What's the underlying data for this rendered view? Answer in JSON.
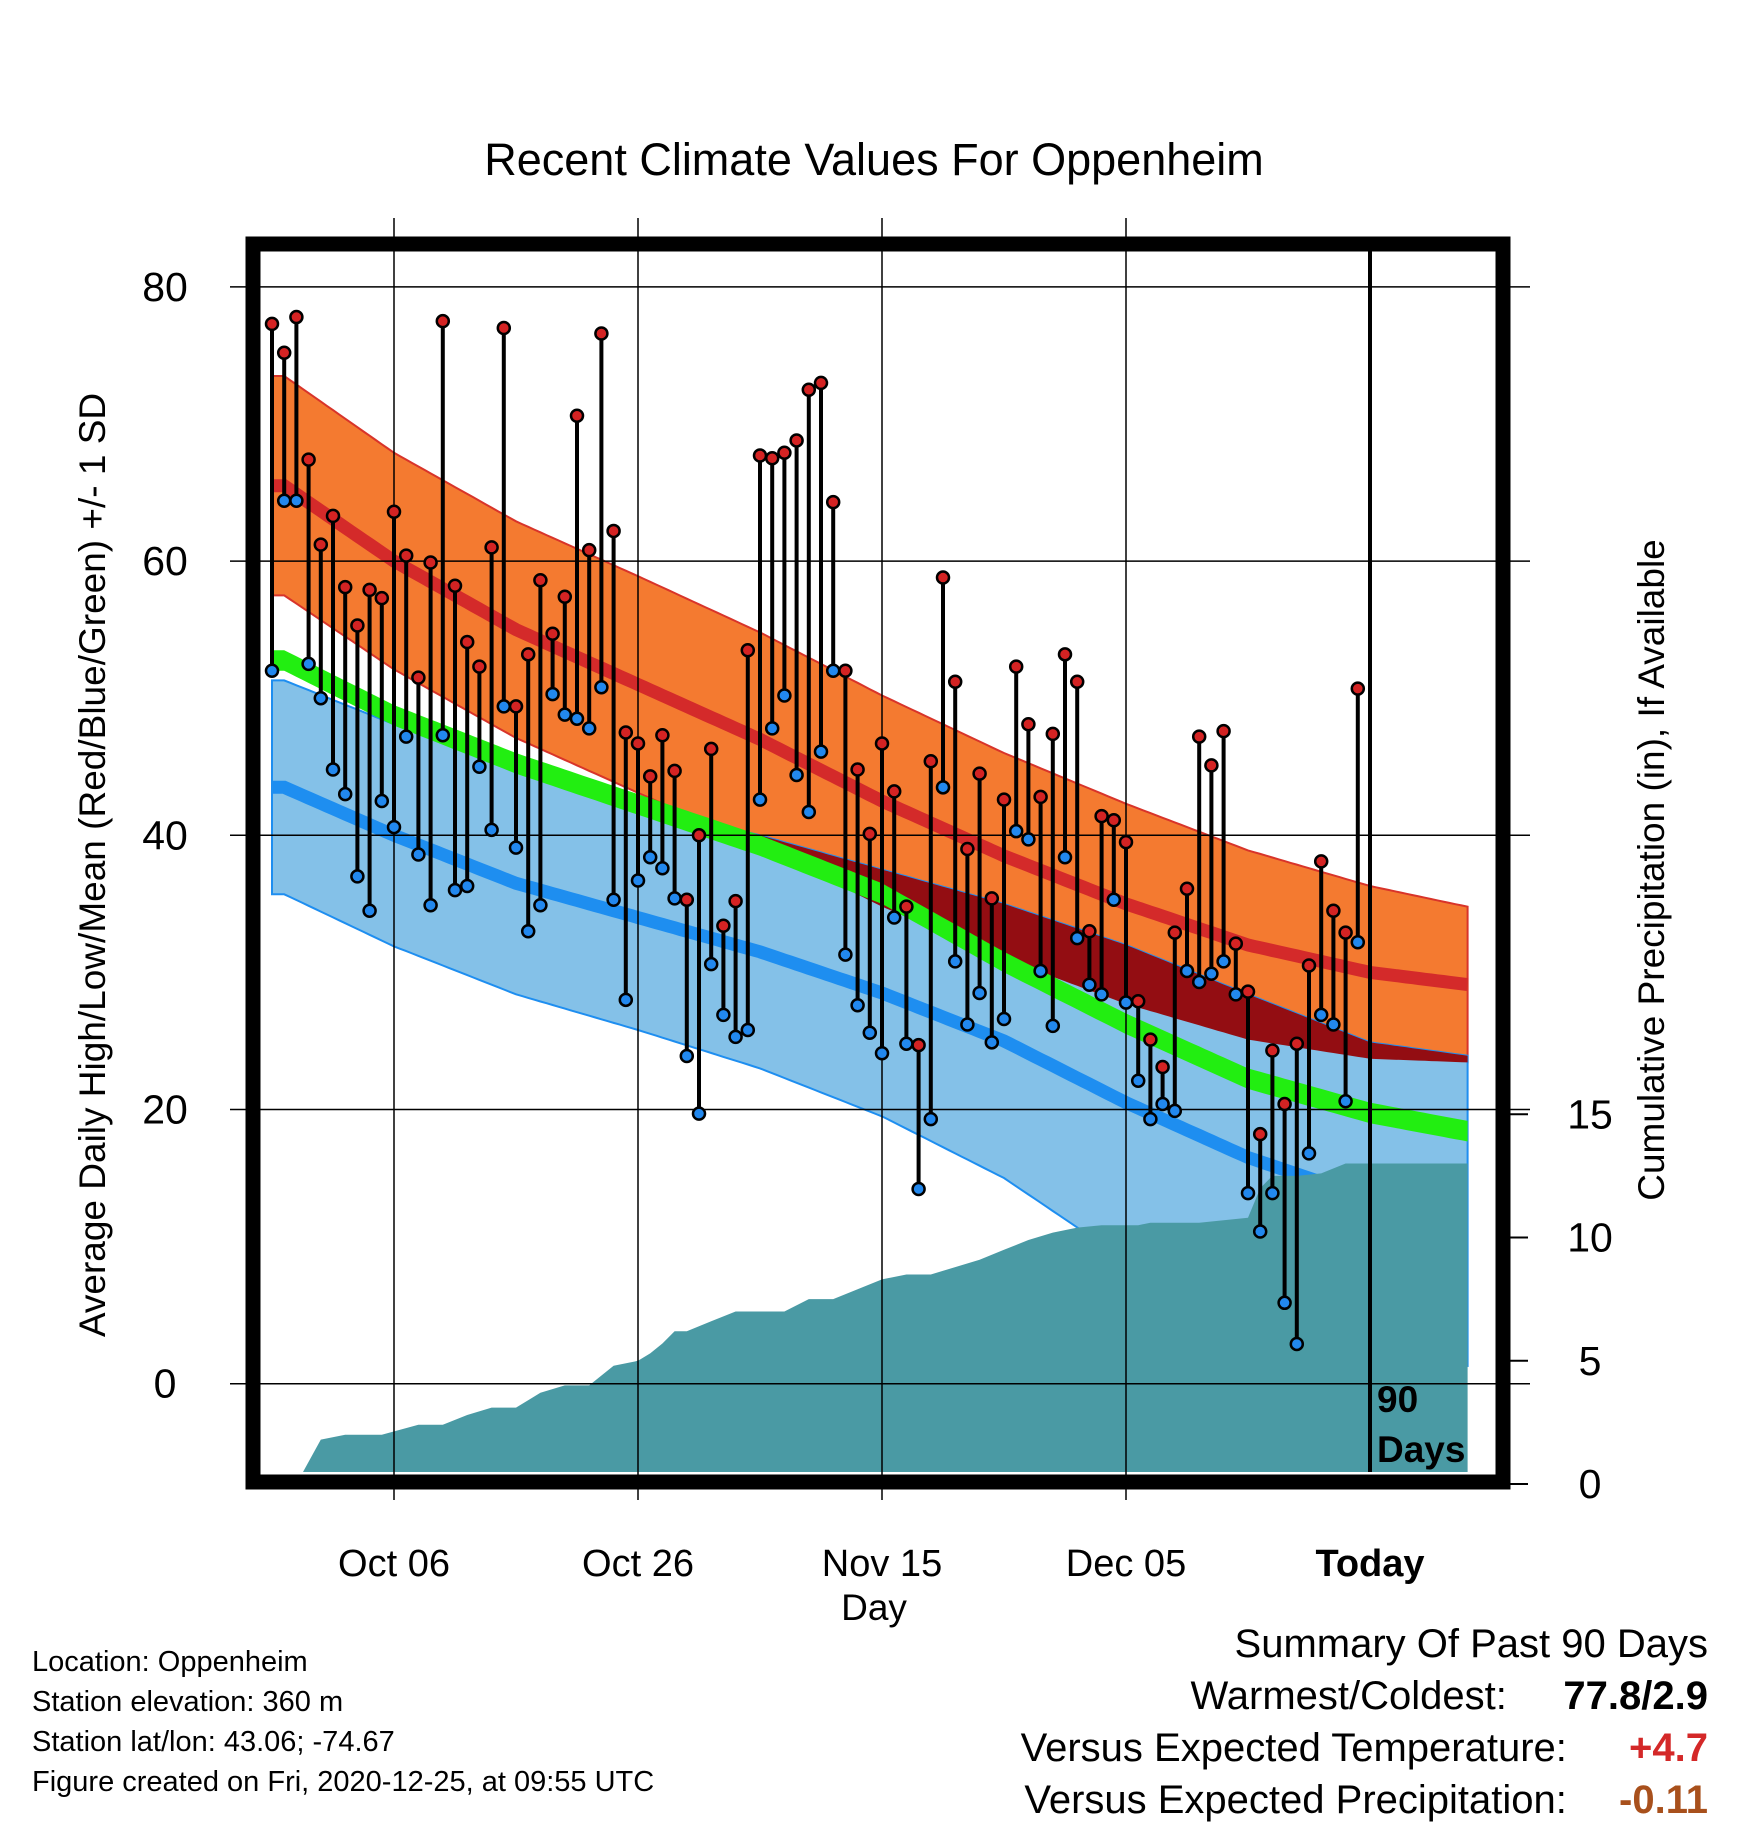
{
  "chart_data": {
    "type": "line",
    "title": "Recent Climate Values For Oppenheim",
    "xlabel": "Day",
    "ylabel": "Average Daily High/Low/Mean (Red/Blue/Green) +/- 1 SD",
    "y2label": "Cumulative Precipitation (in), If Available",
    "ylim": [
      -7,
      84
    ],
    "y2lim": [
      0,
      30
    ],
    "xlim": [
      -90,
      9
    ],
    "x_ticks": [
      {
        "x": -80,
        "label": "Oct 06"
      },
      {
        "x": -60,
        "label": "Oct 26"
      },
      {
        "x": -40,
        "label": "Nov 15"
      },
      {
        "x": -20,
        "label": "Dec 05"
      },
      {
        "x": 0,
        "label": "Today"
      }
    ],
    "y_ticks": [
      0,
      20,
      40,
      60,
      80
    ],
    "y2_ticks": [
      0,
      5,
      10,
      15
    ],
    "today_marker": {
      "x": 0,
      "label_line1": "90",
      "label_line2": "Days"
    },
    "grid": true,
    "colors": {
      "high_band": "#f47a30",
      "high_mean": "#d42a2a",
      "low_band": "#84c1e8",
      "low_mean": "#1e8ef0",
      "mean_band": "#22ee11",
      "overlap": "#930d12",
      "precip": "#4a9aa4",
      "high_marker": "#d42323",
      "low_marker": "#2288ee"
    },
    "normals": {
      "x": [
        -89,
        -80,
        -70,
        -60,
        -50,
        -40,
        -30,
        -20,
        -10,
        0,
        9
      ],
      "high_mean": [
        65.5,
        60.0,
        55.0,
        51.0,
        47.0,
        42.5,
        38.5,
        35.0,
        32.0,
        30.0,
        29.0
      ],
      "high_sd": [
        8.0,
        7.9,
        7.9,
        7.9,
        7.8,
        7.7,
        7.5,
        7.3,
        6.9,
        6.3,
        5.6
      ],
      "low_mean": [
        43.5,
        40.0,
        36.5,
        34.0,
        31.5,
        28.5,
        25.0,
        20.5,
        16.5,
        13.5,
        12.5
      ],
      "low_sd": [
        7.8,
        8.1,
        8.1,
        8.2,
        8.5,
        9.0,
        10.0,
        11.5,
        11.9,
        11.4,
        11.3
      ],
      "mean_upper": [
        53.5,
        49.5,
        46.0,
        43.0,
        40.0,
        36.5,
        31.5,
        27.0,
        23.0,
        20.5,
        19.0
      ],
      "mean_lower": [
        52.0,
        48.0,
        44.5,
        41.5,
        38.5,
        35.0,
        30.0,
        25.5,
        21.5,
        19.0,
        17.5
      ]
    },
    "series": [
      {
        "name": "High",
        "values": [
          77.3,
          75.2,
          77.8,
          67.4,
          61.2,
          63.3,
          58.1,
          55.3,
          57.9,
          57.3,
          63.6,
          60.4,
          51.5,
          59.9,
          77.5,
          58.2,
          54.1,
          52.3,
          61.0,
          77.0,
          49.4,
          53.2,
          58.6,
          54.7,
          57.4,
          70.6,
          60.8,
          76.6,
          62.2,
          47.5,
          46.7,
          44.3,
          47.3,
          44.7,
          35.3,
          40.0,
          46.3,
          33.4,
          35.2,
          53.5,
          67.7,
          67.5,
          67.9,
          68.8,
          72.5,
          73.0,
          64.3,
          52.0,
          44.8,
          40.1,
          46.7,
          43.2,
          34.8,
          24.7,
          45.4,
          58.8,
          51.2,
          39.0,
          44.5,
          35.4,
          42.6,
          52.3,
          48.1,
          42.8,
          47.4,
          53.2,
          51.2,
          33.0,
          41.4,
          41.1,
          39.5,
          27.9,
          25.1,
          23.1,
          32.9,
          36.1,
          47.2,
          45.1,
          47.6,
          32.1,
          28.6,
          18.2,
          24.3,
          20.4,
          24.8,
          30.5,
          38.1,
          34.5,
          32.9,
          50.7
        ]
      },
      {
        "name": "Low",
        "values": [
          52.0,
          64.4,
          64.4,
          52.5,
          50.0,
          44.8,
          43.0,
          37.0,
          34.5,
          42.5,
          40.6,
          47.2,
          38.6,
          34.9,
          47.3,
          36.0,
          36.3,
          45.0,
          40.4,
          49.4,
          39.1,
          33.0,
          34.9,
          50.3,
          48.8,
          48.5,
          47.8,
          50.8,
          35.3,
          28.0,
          36.7,
          38.4,
          37.6,
          35.4,
          23.9,
          19.7,
          30.6,
          26.9,
          25.3,
          25.8,
          42.6,
          47.8,
          50.2,
          44.4,
          41.7,
          46.1,
          52.0,
          31.3,
          27.6,
          25.6,
          24.1,
          34.0,
          24.8,
          14.2,
          19.3,
          43.5,
          30.8,
          26.2,
          28.5,
          24.9,
          26.6,
          40.3,
          39.7,
          30.1,
          26.1,
          38.4,
          32.5,
          29.1,
          28.4,
          35.3,
          27.8,
          22.1,
          19.3,
          20.4,
          19.9,
          30.1,
          29.3,
          29.9,
          30.8,
          28.4,
          13.9,
          11.1,
          13.9,
          5.9,
          2.9,
          16.8,
          26.9,
          26.2,
          20.6,
          32.2
        ]
      }
    ],
    "precip": {
      "x": [
        -89,
        -88,
        -86,
        -84,
        -82,
        -81,
        -78,
        -76,
        -74,
        -72,
        -70,
        -68,
        -66,
        -64,
        -62,
        -60,
        -59,
        -58,
        -57,
        -56,
        -54,
        -52,
        -51,
        -50,
        -49,
        -48,
        -46,
        -44,
        -42,
        -40,
        -38,
        -36,
        -34,
        -32,
        -30,
        -28,
        -26,
        -24,
        -22,
        -20,
        -19,
        -18,
        -16,
        -14,
        -12,
        -10,
        -9,
        -8,
        -6,
        -4,
        -2,
        0,
        2,
        4,
        6,
        8,
        9
      ],
      "cum": [
        0,
        0,
        1.8,
        2.0,
        2.0,
        2.0,
        2.4,
        2.4,
        2.8,
        3.1,
        3.1,
        3.7,
        4.0,
        4.0,
        4.8,
        5.0,
        5.3,
        5.7,
        6.2,
        6.2,
        6.6,
        7.0,
        7.0,
        7.0,
        7.0,
        7.0,
        7.5,
        7.5,
        7.9,
        8.3,
        8.5,
        8.5,
        8.8,
        9.1,
        9.5,
        9.9,
        10.2,
        10.4,
        10.5,
        10.5,
        10.5,
        10.6,
        10.6,
        10.6,
        10.7,
        10.8,
        12.0,
        12.5,
        12.5,
        12.6,
        13.0,
        13.0,
        13.0,
        13.0,
        13.0,
        13.0,
        13.0
      ]
    }
  },
  "info": {
    "location": "Location: Oppenheim",
    "elevation": "Station elevation: 360 m",
    "latlon": "Station lat/lon: 43.06; -74.67",
    "created": "Figure created on Fri, 2020-12-25, at 09:55 UTC"
  },
  "summary": {
    "heading": "Summary Of Past 90 Days",
    "warm_cold_label": "Warmest/Coldest:",
    "warm_cold_value": "77.8/2.9",
    "temp_label": "Versus Expected Temperature:",
    "temp_value": "+4.7",
    "temp_color": "#d42828",
    "precip_label": "Versus Expected Precipitation:",
    "precip_value": "-0.11",
    "precip_color": "#a8501c"
  }
}
